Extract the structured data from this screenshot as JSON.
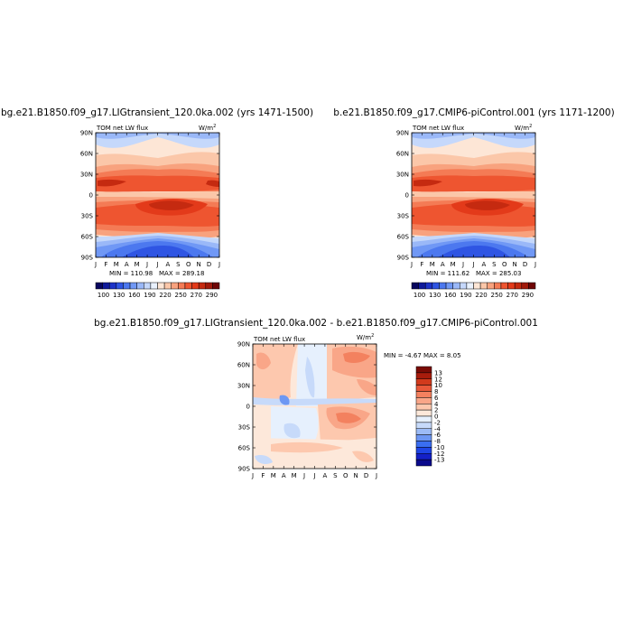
{
  "chart_data": [
    {
      "type": "heatmap",
      "id": "panel-lig",
      "title": "bg.e21.B1850.f09_g17.LIGtransient_120.0ka.002 (yrs 1471-1500)",
      "variable_label": "TOM net LW flux",
      "units_label": "W/m",
      "units_sup": "2",
      "x_ticks": [
        "J",
        "F",
        "M",
        "A",
        "M",
        "J",
        "J",
        "A",
        "S",
        "O",
        "N",
        "D",
        "J"
      ],
      "y_ticks": [
        "90N",
        "60N",
        "30N",
        "0",
        "30S",
        "60S",
        "90S"
      ],
      "x_range": [
        1,
        13
      ],
      "y_range": [
        -90,
        90
      ],
      "min_label": "MIN = 110.98",
      "max_label": "MAX = 289.18",
      "stats": {
        "min": 110.98,
        "max": 289.18
      },
      "colorbar_labels": [
        "100",
        "130",
        "160",
        "190",
        "220",
        "250",
        "270",
        "290"
      ],
      "contour_levels": [
        100,
        115,
        130,
        145,
        160,
        175,
        190,
        205,
        220,
        235,
        250,
        260,
        270,
        280,
        290
      ]
    },
    {
      "type": "heatmap",
      "id": "panel-pi",
      "title": "b.e21.B1850.f09_g17.CMIP6-piControl.001 (yrs 1171-1200)",
      "variable_label": "TOM net LW flux",
      "units_label": "W/m",
      "units_sup": "2",
      "x_ticks": [
        "J",
        "F",
        "M",
        "A",
        "M",
        "J",
        "J",
        "A",
        "S",
        "O",
        "N",
        "D",
        "J"
      ],
      "y_ticks": [
        "90N",
        "60N",
        "30N",
        "0",
        "30S",
        "60S",
        "90S"
      ],
      "x_range": [
        1,
        13
      ],
      "y_range": [
        -90,
        90
      ],
      "min_label": "MIN = 111.62",
      "max_label": "MAX = 285.03",
      "stats": {
        "min": 111.62,
        "max": 285.03
      },
      "colorbar_labels": [
        "100",
        "130",
        "160",
        "190",
        "220",
        "250",
        "270",
        "290"
      ],
      "contour_levels": [
        100,
        115,
        130,
        145,
        160,
        175,
        190,
        205,
        220,
        235,
        250,
        260,
        270,
        280,
        290
      ]
    },
    {
      "type": "heatmap",
      "id": "panel-diff",
      "title": "bg.e21.B1850.f09_g17.LIGtransient_120.0ka.002 - b.e21.B1850.f09_g17.CMIP6-piControl.001",
      "variable_label": "TOM net LW flux",
      "units_label": "W/m",
      "units_sup": "2",
      "x_ticks": [
        "J",
        "F",
        "M",
        "A",
        "M",
        "J",
        "J",
        "A",
        "S",
        "O",
        "N",
        "D",
        "J"
      ],
      "y_ticks": [
        "90N",
        "60N",
        "30N",
        "0",
        "30S",
        "60S",
        "90S"
      ],
      "x_range": [
        1,
        13
      ],
      "y_range": [
        -90,
        90
      ],
      "minmax_label": "MIN = -4.67 MAX =  8.05",
      "stats": {
        "min": -4.67,
        "max": 8.05
      },
      "colorbar_labels": [
        "13",
        "12",
        "10",
        "8",
        "6",
        "4",
        "2",
        "0",
        "-2",
        "-4",
        "-6",
        "-8",
        "-10",
        "-12",
        "-13"
      ],
      "contour_levels": [
        -13,
        -12,
        -10,
        -8,
        -6,
        -4,
        -2,
        0,
        2,
        4,
        6,
        8,
        10,
        12,
        13
      ]
    }
  ],
  "colors": {
    "abs_scale": [
      "#08065e",
      "#0f1a9a",
      "#1d33c8",
      "#2f55e3",
      "#4c78ef",
      "#7098f5",
      "#9ab8f8",
      "#c5d8fb",
      "#e9f1fd",
      "#fde6d6",
      "#fbc7a9",
      "#f8a27e",
      "#f47b55",
      "#ee5530",
      "#e33a1a",
      "#c52a10",
      "#a11a0b",
      "#6f0505"
    ],
    "diff_scale": [
      "#0a0a8c",
      "#1420c8",
      "#1f45e5",
      "#3a6ef0",
      "#6d97f3",
      "#9cbbf6",
      "#c7dafa",
      "#e6f0fd",
      "#fde8da",
      "#fdc8ae",
      "#f9a688",
      "#f3815f",
      "#e9593a",
      "#d23a1c",
      "#a81c0c",
      "#7a0b05"
    ]
  }
}
